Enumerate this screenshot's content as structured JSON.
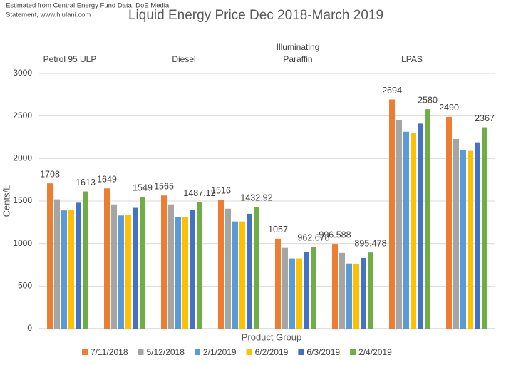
{
  "chart_data": {
    "type": "bar",
    "title": "Liquid Energy Price Dec 2018-March 2019",
    "source_note": [
      "Estimated from Central Energy Fund Data, DoE Media",
      "Statement, www.hlulani.com"
    ],
    "x_label": "Product Group",
    "y_label": "Cents/L",
    "groups": [
      [
        "Petrol 95 ULP"
      ],
      [
        "Diesel"
      ],
      [
        "Illuminating",
        "Paraffin"
      ],
      [
        "LPAS"
      ]
    ],
    "categories": [
      null,
      null,
      null,
      null,
      null,
      null,
      null,
      null
    ],
    "ylim": [
      0,
      3000
    ],
    "yticks": [
      0,
      500,
      1000,
      1500,
      2000,
      2500,
      3000
    ],
    "grid": true,
    "legend": "bottom",
    "series": [
      {
        "name": "7/11/2018",
        "color": "#ED7D31",
        "data_labels": true,
        "values": [
          1708,
          1649,
          1565,
          1516,
          1057,
          996.588,
          2694,
          2490
        ]
      },
      {
        "name": "5/12/2018",
        "color": "#A5A5A5",
        "data_labels": false,
        "values": [
          1520,
          1460,
          1460,
          1410,
          950,
          890,
          2450,
          2230
        ]
      },
      {
        "name": "2/1/2019",
        "color": "#5B9BD5",
        "data_labels": false,
        "values": [
          1390,
          1330,
          1310,
          1260,
          825,
          765,
          2315,
          2100
        ]
      },
      {
        "name": "6/2/2019",
        "color": "#FFC000",
        "data_labels": false,
        "values": [
          1400,
          1340,
          1310,
          1260,
          825,
          755,
          2300,
          2090
        ]
      },
      {
        "name": "6/3/2019",
        "color": "#4472C4",
        "data_labels": false,
        "values": [
          1480,
          1420,
          1400,
          1350,
          900,
          830,
          2410,
          2190
        ]
      },
      {
        "name": "2/4/2019",
        "color": "#70AD47",
        "data_labels": true,
        "values": [
          1613,
          1549,
          1487.12,
          1432.92,
          962.678,
          895.478,
          2580,
          2367
        ]
      }
    ]
  }
}
